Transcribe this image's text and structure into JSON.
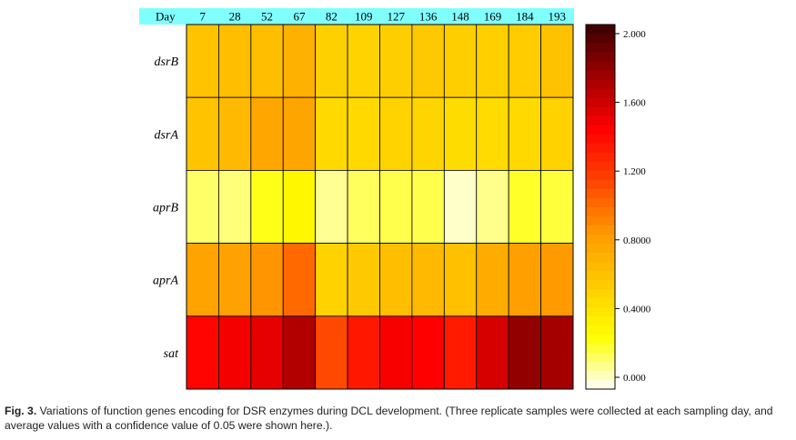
{
  "chart_data": {
    "type": "heatmap",
    "title": "",
    "x_header": "Day",
    "x": [
      "7",
      "28",
      "52",
      "67",
      "82",
      "109",
      "127",
      "136",
      "148",
      "169",
      "184",
      "193"
    ],
    "y": [
      "dsrB",
      "dsrA",
      "aprB",
      "aprA",
      "sat"
    ],
    "values": [
      [
        0.62,
        0.65,
        0.65,
        0.72,
        0.55,
        0.53,
        0.56,
        0.59,
        0.56,
        0.55,
        0.57,
        0.63
      ],
      [
        0.62,
        0.68,
        0.78,
        0.79,
        0.5,
        0.5,
        0.53,
        0.52,
        0.48,
        0.49,
        0.5,
        0.54
      ],
      [
        0.17,
        0.15,
        0.26,
        0.33,
        0.12,
        0.18,
        0.2,
        0.2,
        0.06,
        0.13,
        0.24,
        0.22
      ],
      [
        0.8,
        0.81,
        0.87,
        1.02,
        0.54,
        0.59,
        0.65,
        0.68,
        0.64,
        0.75,
        0.82,
        0.85
      ],
      [
        1.41,
        1.46,
        1.5,
        1.66,
        1.13,
        1.33,
        1.45,
        1.43,
        1.32,
        1.55,
        1.75,
        1.7
      ]
    ],
    "colorbar": {
      "min": 0.0,
      "max": 2.0,
      "ticks": [
        0.0,
        0.4,
        0.8,
        1.2,
        1.6,
        2.0
      ],
      "tick_labels": [
        "0.000",
        "0.4000",
        "0.8000",
        "1.200",
        "1.600",
        "2.000"
      ]
    },
    "colors": [
      "#ffffff",
      "#ffff00",
      "#ffcc00",
      "#ff9900",
      "#ff4400",
      "#ff0000",
      "#a00000",
      "#3a0000"
    ]
  },
  "caption": {
    "label": "Fig. 3.",
    "text": "Variations of function genes encoding for DSR enzymes during DCL development. (Three replicate samples were collected at each sampling day, and average values with a confidence value of 0.05 were shown here.)."
  }
}
